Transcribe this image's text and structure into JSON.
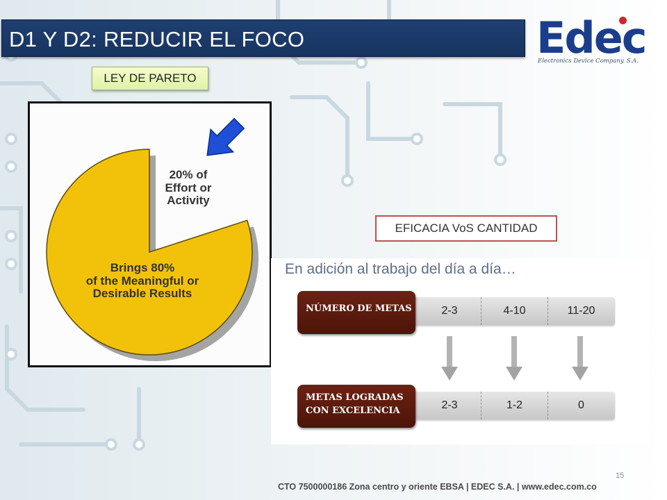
{
  "slide": {
    "title": "D1 Y D2: REDUCIR EL FOCO",
    "logo": {
      "word": "Edec",
      "subtitle": "Electronics Device Company. S.A."
    },
    "pareto_label": "LEY DE PARETO",
    "pie": {
      "small_text": [
        "20% of",
        "Effort or",
        "Activity"
      ],
      "big_text": [
        "Brings 80%",
        "of the Meaningful or",
        "Desirable Results"
      ],
      "small_share": 0.2,
      "large_share": 0.8,
      "fill_color": "#f2c20a",
      "arrow_color": "#1f4fd6"
    },
    "eficacia_label": "EFICACIA VoS CANTIDAD",
    "goals": {
      "heading": "En adición al trabajo del día a día…",
      "rows": [
        {
          "label_lines": [
            "NÚMERO DE METAS"
          ],
          "values": [
            "2-3",
            "4-10",
            "11-20"
          ]
        },
        {
          "label_lines": [
            "METAS LOGRADAS",
            "CON EXCELENCIA"
          ],
          "values": [
            "2-3",
            "1-2",
            "0"
          ]
        }
      ]
    },
    "page_number": "15",
    "footer": "CTO 7500000186 Zona centro y oriente EBSA   |   EDEC S.A.   |   www.edec.com.co",
    "colors": {
      "title_bar": "#1f3f73",
      "label_brown": "#5a1a0e",
      "accent_red": "#c0504d"
    }
  }
}
